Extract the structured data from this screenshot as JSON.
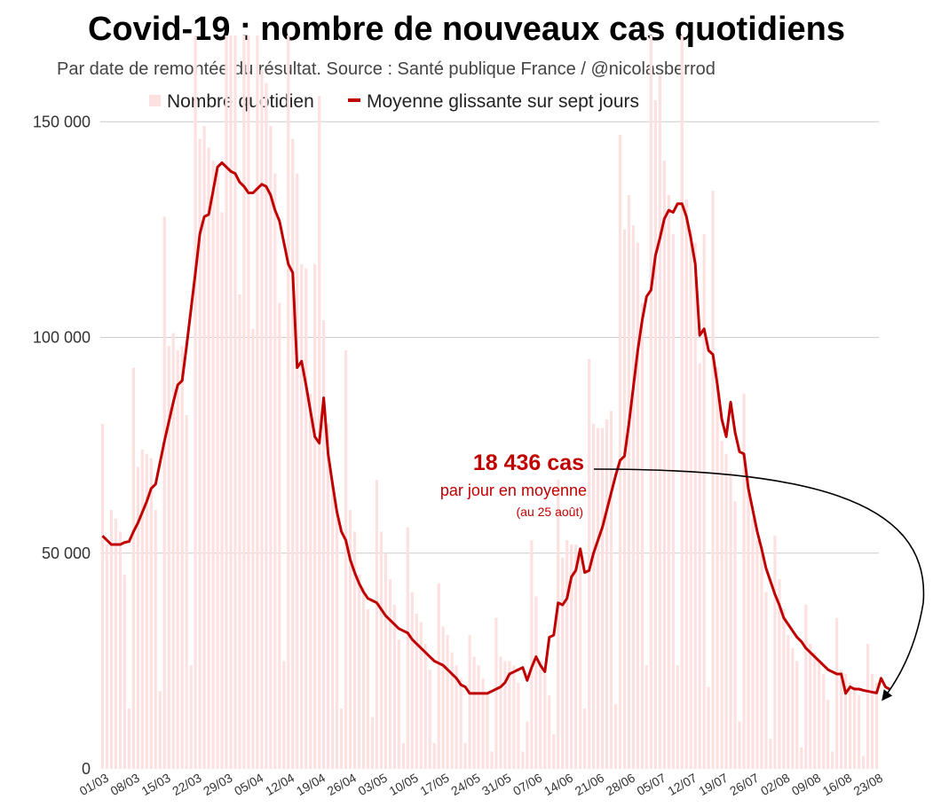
{
  "chart_data": {
    "type": "bar+line",
    "title": "Covid-19 : nombre de nouveaux cas quotidiens",
    "subtitle": "Par date de remontée du résultat. Source : Santé publique France / @nicolasberrod",
    "legend": {
      "placement": "top",
      "bar_label": "Nombre quotidien",
      "line_label": "Moyenne glissante sur sept jours"
    },
    "grid": true,
    "ylim": [
      0,
      170000
    ],
    "yticks": [
      {
        "value": 0,
        "label": "0"
      },
      {
        "value": 50000,
        "label": "50 000"
      },
      {
        "value": 100000,
        "label": "100 000"
      },
      {
        "value": 150000,
        "label": "150 000"
      }
    ],
    "xtick_labels": [
      "01/03",
      "08/03",
      "15/03",
      "22/03",
      "29/03",
      "05/04",
      "12/04",
      "19/04",
      "26/04",
      "03/05",
      "10/05",
      "17/05",
      "24/05",
      "31/05",
      "07/06",
      "14/06",
      "21/06",
      "28/06",
      "05/07",
      "12/07",
      "19/07",
      "26/07",
      "02/08",
      "09/08",
      "16/08",
      "23/08"
    ],
    "first_date": "01/03",
    "colors": {
      "bars": "#fde0e0",
      "line": "#c00000",
      "grid": "#cccccc",
      "annotation": "#c00000"
    },
    "daily_values": [
      80000,
      52000,
      60000,
      58000,
      55000,
      45000,
      14000,
      93000,
      70000,
      74000,
      73000,
      72000,
      60000,
      18000,
      128000,
      98000,
      101000,
      97000,
      98000,
      82000,
      24000,
      180000,
      146000,
      149000,
      144000,
      141000,
      139000,
      129000,
      185000,
      170000,
      170000,
      110000,
      181000,
      173000,
      102000,
      200000,
      162000,
      159000,
      149000,
      138000,
      108000,
      25000,
      185000,
      146000,
      138000,
      117000,
      116000,
      87000,
      117000,
      156000,
      104000,
      80000,
      66000,
      59000,
      14000,
      97000,
      60000,
      55000,
      45000,
      42000,
      37000,
      12000,
      67000,
      55000,
      50000,
      44000,
      38000,
      30000,
      6000,
      56000,
      41000,
      36000,
      34000,
      29000,
      23000,
      6000,
      43000,
      33000,
      31000,
      27000,
      24000,
      21000,
      6000,
      31000,
      26000,
      24000,
      21000,
      18000,
      4000,
      35000,
      26000,
      25000,
      25000,
      24000,
      20000,
      4000,
      11000,
      53000,
      40000,
      25000,
      22000,
      17000,
      8000,
      67000,
      49000,
      53000,
      52000,
      52000,
      50000,
      14000,
      95000,
      80000,
      79000,
      79000,
      81000,
      83000,
      15000,
      147000,
      125000,
      133000,
      126000,
      122000,
      108000,
      24000,
      212000,
      155000,
      161000,
      141000,
      133000,
      124000,
      24000,
      182000,
      132000,
      125000,
      122000,
      94000,
      124000,
      19000,
      134000,
      93000,
      76000,
      73000,
      69000,
      62000,
      11000,
      87000,
      67000,
      58000,
      53000,
      51000,
      41000,
      7000,
      54000,
      44000,
      37000,
      31000,
      28000,
      25000,
      5000,
      38000,
      29000,
      27000,
      25000,
      22000,
      16000,
      4000,
      35000,
      23000,
      22000,
      20000,
      19000,
      17000,
      3000,
      29000,
      22000,
      20000
    ],
    "moving_average": [
      54000,
      53000,
      52000,
      52000,
      52000,
      52500,
      52700,
      55000,
      57000,
      59500,
      62000,
      65000,
      66000,
      71000,
      76000,
      80500,
      85000,
      89000,
      90000,
      98000,
      106500,
      115000,
      124000,
      128000,
      128500,
      134000,
      139500,
      140500,
      139500,
      138500,
      138000,
      136000,
      135000,
      133500,
      133500,
      134500,
      135500,
      135000,
      133000,
      129500,
      127000,
      122000,
      117000,
      115000,
      93000,
      94500,
      89000,
      83000,
      77000,
      75500,
      86000,
      73000,
      66000,
      59500,
      55000,
      53000,
      48500,
      45500,
      43000,
      41000,
      39500,
      39000,
      38500,
      37000,
      35500,
      34500,
      33500,
      32500,
      32000,
      31500,
      30000,
      29000,
      28000,
      27000,
      26000,
      25000,
      24500,
      24000,
      23000,
      22000,
      21000,
      19500,
      19000,
      17500,
      17500,
      17500,
      17500,
      17500,
      18000,
      18500,
      19000,
      20000,
      22000,
      22500,
      23000,
      23500,
      20500,
      23500,
      26000,
      24000,
      22500,
      30500,
      31000,
      38500,
      38000,
      39500,
      44500,
      46000,
      51000,
      45500,
      46000,
      50000,
      53000,
      56000,
      60000,
      64000,
      68000,
      71500,
      72500,
      80000,
      88500,
      97000,
      104000,
      109500,
      111000,
      119000,
      123000,
      127500,
      129500,
      129000,
      131000,
      131000,
      128000,
      123000,
      117000,
      100500,
      102000,
      97000,
      96000,
      89000,
      81000,
      77000,
      85000,
      78000,
      73500,
      73000,
      65000,
      60000,
      55000,
      51000,
      46500,
      43500,
      40500,
      38000,
      35000,
      33500,
      32000,
      30500,
      29500,
      28000,
      27000,
      26000,
      25000,
      24000,
      23000,
      22500,
      22000,
      22000,
      17500,
      19000,
      18500,
      18500,
      18200,
      18000,
      17800,
      17600,
      21000,
      19000,
      18436
    ],
    "annotation": {
      "headline": "18 436 cas",
      "line2": "par jour en moyenne",
      "line3": "(au 25 août)"
    }
  }
}
